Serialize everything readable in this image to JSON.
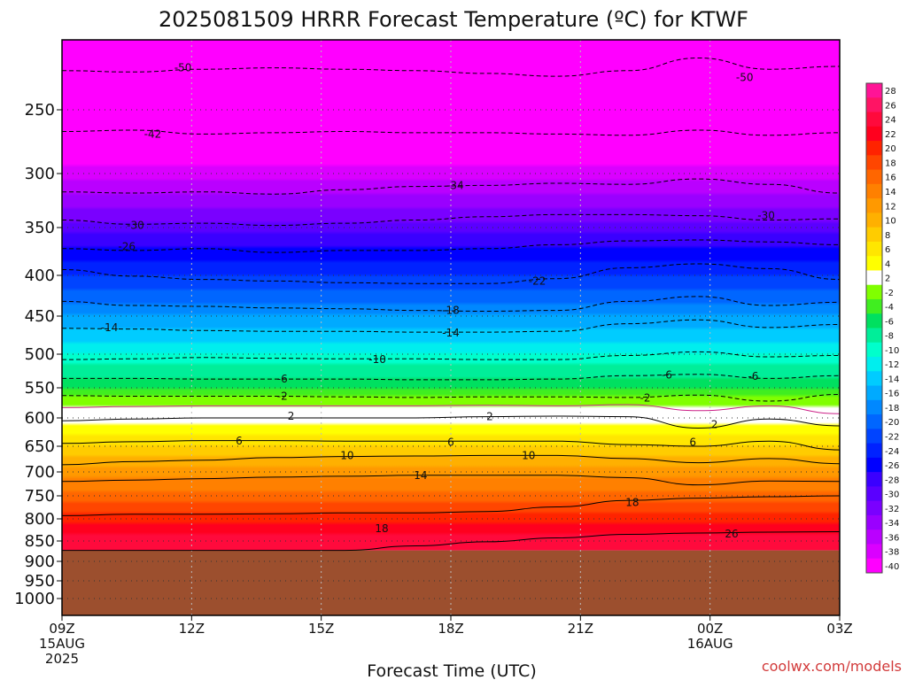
{
  "chart_data": {
    "type": "heatmap",
    "title": "2025081509 HRRR Forecast Temperature (ºC) for KTWF",
    "xlabel": "Forecast Time (UTC)",
    "ylabel": "",
    "credit": "coolwx.com/models",
    "x_hours": [
      0,
      3,
      6,
      9,
      12,
      15,
      18
    ],
    "x_tick_labels": [
      [
        "09Z",
        "15AUG",
        "2025"
      ],
      [
        "12Z"
      ],
      [
        "15Z"
      ],
      [
        "18Z"
      ],
      [
        "21Z"
      ],
      [
        "00Z",
        "16AUG"
      ],
      [
        "03Z"
      ]
    ],
    "y_ticks": [
      250,
      300,
      350,
      400,
      450,
      500,
      550,
      600,
      650,
      700,
      750,
      800,
      850,
      900,
      950,
      1000
    ],
    "ylim": [
      1050,
      200
    ],
    "surface_pressure": 873,
    "grid": true,
    "colorbar": {
      "labels": [
        "28",
        "26",
        "24",
        "22",
        "20",
        "18",
        "16",
        "14",
        "12",
        "10",
        "8",
        "6",
        "4",
        "2",
        "-2",
        "-4",
        "-6",
        "-8",
        "-10",
        "-12",
        "-14",
        "-16",
        "-18",
        "-20",
        "-22",
        "-24",
        "-26",
        "-28",
        "-30",
        "-32",
        "-34",
        "-36",
        "-38",
        "-40"
      ],
      "colors": [
        "#ff1496",
        "#ff1464",
        "#ff0a3c",
        "#ff001e",
        "#ff2300",
        "#ff4600",
        "#ff6600",
        "#ff8000",
        "#ff9900",
        "#ffb000",
        "#ffcc00",
        "#ffe600",
        "#ffff00",
        "#ffffff",
        "#80ff00",
        "#40ee20",
        "#00e060",
        "#00ee99",
        "#00ffcc",
        "#00eeee",
        "#00ccff",
        "#00aaff",
        "#0088ff",
        "#0066ff",
        "#0044ff",
        "#0022ff",
        "#0000ff",
        "#3a00ff",
        "#5a00ff",
        "#7a00ff",
        "#9a00ff",
        "#ba00ff",
        "#da00ff",
        "#ff00ff"
      ]
    },
    "temperature_profile": [
      {
        "p": 200,
        "t": -52
      },
      {
        "p": 250,
        "t": -47
      },
      {
        "p": 300,
        "t": -38
      },
      {
        "p": 350,
        "t": -30
      },
      {
        "p": 400,
        "t": -23
      },
      {
        "p": 450,
        "t": -17
      },
      {
        "p": 500,
        "t": -11
      },
      {
        "p": 550,
        "t": -5
      },
      {
        "p": 580,
        "t": 0
      },
      {
        "p": 600,
        "t": 2
      },
      {
        "p": 650,
        "t": 7
      },
      {
        "p": 700,
        "t": 12
      },
      {
        "p": 750,
        "t": 16
      },
      {
        "p": 800,
        "t": 20
      },
      {
        "p": 850,
        "t": 24
      },
      {
        "p": 873,
        "t": 25
      }
    ],
    "contours": [
      {
        "label": "-50",
        "dashed": true,
        "labels_at": [
          [
            2.8,
            220
          ],
          [
            15.8,
            227
          ]
        ],
        "p": [
          222,
          223,
          221,
          220,
          221,
          222,
          224,
          226,
          222,
          213,
          221,
          219
        ]
      },
      {
        "label": "-42",
        "dashed": true,
        "labels_at": [
          [
            2.1,
            269
          ]
        ],
        "p": [
          267,
          266,
          269,
          268,
          267,
          268,
          268,
          269,
          270,
          266,
          270,
          268
        ]
      },
      {
        "label": "-34",
        "dashed": true,
        "labels_at": [
          [
            9.1,
            311
          ]
        ],
        "p": [
          317,
          318,
          317,
          319,
          315,
          312,
          311,
          309,
          310,
          305,
          310,
          318
        ]
      },
      {
        "label": "-30",
        "dashed": true,
        "labels_at": [
          [
            1.7,
            348
          ],
          [
            16.3,
            339
          ]
        ],
        "p": [
          343,
          347,
          346,
          348,
          346,
          343,
          340,
          338,
          338,
          339,
          343,
          342
        ]
      },
      {
        "label": "-26",
        "dashed": true,
        "labels_at": [
          [
            1.5,
            370
          ]
        ],
        "p": [
          372,
          374,
          372,
          376,
          374,
          374,
          372,
          368,
          364,
          363,
          365,
          368
        ]
      },
      {
        "label": "-22",
        "dashed": true,
        "labels_at": [
          [
            11.0,
            407
          ]
        ],
        "p": [
          394,
          401,
          405,
          407,
          409,
          410,
          410,
          404,
          392,
          388,
          393,
          405
        ]
      },
      {
        "label": "-18",
        "dashed": true,
        "labels_at": [
          [
            9.0,
            443
          ]
        ],
        "p": [
          432,
          437,
          438,
          440,
          441,
          443,
          444,
          443,
          432,
          426,
          437,
          433
        ]
      },
      {
        "label": "-14",
        "dashed": true,
        "labels_at": [
          [
            1.1,
            465
          ],
          [
            9.0,
            472
          ]
        ],
        "p": [
          466,
          467,
          469,
          470,
          470,
          471,
          471,
          470,
          460,
          455,
          465,
          461
        ]
      },
      {
        "label": "-10",
        "dashed": true,
        "labels_at": [
          [
            7.3,
            508
          ]
        ],
        "p": [
          508,
          507,
          505,
          506,
          507,
          507,
          508,
          508,
          502,
          497,
          504,
          502
        ]
      },
      {
        "label": "-6",
        "dashed": true,
        "labels_at": [
          [
            5.1,
            537
          ],
          [
            14.0,
            531
          ],
          [
            16.0,
            533
          ]
        ],
        "p": [
          536,
          536,
          537,
          537,
          537,
          538,
          538,
          537,
          532,
          530,
          536,
          532
        ]
      },
      {
        "label": "-2",
        "dashed": true,
        "labels_at": [
          [
            5.1,
            564
          ],
          [
            13.5,
            567
          ]
        ],
        "p": [
          563,
          564,
          564,
          564,
          565,
          566,
          565,
          565,
          566,
          562,
          572,
          561
        ]
      },
      {
        "label": "0",
        "color": "#cc2288",
        "labels_at": [],
        "p": [
          583,
          581,
          580,
          580,
          580,
          580,
          579,
          580,
          578,
          588,
          580,
          593
        ]
      },
      {
        "label": "2",
        "labels_at": [
          [
            5.3,
            597
          ],
          [
            9.9,
            598
          ],
          [
            15.1,
            612
          ]
        ],
        "p": [
          605,
          602,
          600,
          600,
          600,
          600,
          598,
          597,
          598,
          618,
          602,
          614
        ]
      },
      {
        "label": "6",
        "labels_at": [
          [
            4.1,
            641
          ],
          [
            9.0,
            643
          ],
          [
            14.6,
            643
          ]
        ],
        "p": [
          645,
          642,
          640,
          640,
          641,
          641,
          641,
          641,
          647,
          650,
          641,
          657
        ]
      },
      {
        "label": "10",
        "labels_at": [
          [
            6.6,
            668
          ],
          [
            10.8,
            668
          ]
        ],
        "p": [
          686,
          680,
          677,
          672,
          670,
          669,
          668,
          668,
          674,
          682,
          674,
          684
        ]
      },
      {
        "label": "14",
        "labels_at": [
          [
            8.3,
            707
          ]
        ],
        "p": [
          720,
          717,
          714,
          711,
          709,
          707,
          707,
          707,
          712,
          727,
          719,
          720
        ]
      },
      {
        "label": "18",
        "labels_at": [
          [
            13.2,
            764
          ],
          [
            7.4,
            822
          ]
        ],
        "p": [
          793,
          790,
          790,
          789,
          787,
          787,
          784,
          774,
          760,
          755,
          752,
          750
        ]
      },
      {
        "label": "26",
        "labels_at": [
          [
            15.5,
            834
          ]
        ],
        "p": [
          873,
          873,
          873,
          873,
          873,
          862,
          852,
          843,
          835,
          832,
          830,
          829
        ]
      }
    ]
  }
}
